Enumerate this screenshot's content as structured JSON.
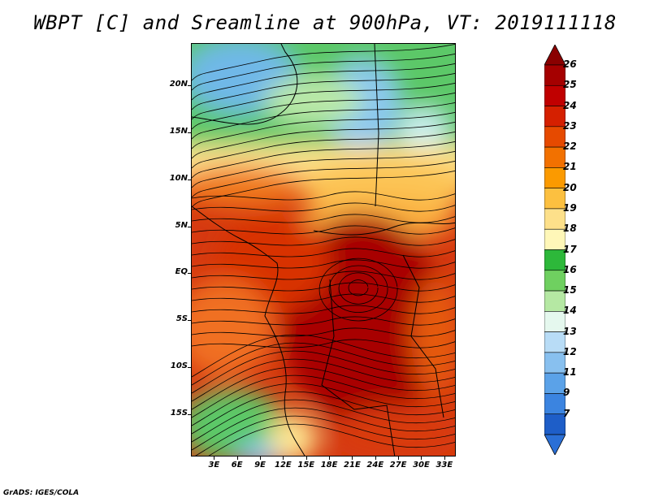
{
  "title": "WBPT [C] and Sreamline at 900hPa, VT: 2019111118",
  "footer": "GrADS: IGES/COLA",
  "axes": {
    "lat_labels": [
      "20N",
      "15N",
      "10N",
      "5N",
      "EQ",
      "5S",
      "10S",
      "15S"
    ],
    "lat_values": [
      20,
      15,
      10,
      5,
      0,
      -5,
      -10,
      -15
    ],
    "lon_labels": [
      "3E",
      "6E",
      "9E",
      "12E",
      "15E",
      "18E",
      "21E",
      "24E",
      "27E",
      "30E",
      "33E"
    ],
    "lon_values": [
      3,
      6,
      9,
      12,
      15,
      18,
      21,
      24,
      27,
      30,
      33
    ],
    "lon_range": [
      0,
      34.5
    ],
    "lat_range": [
      -19.5,
      24.5
    ]
  },
  "colorbar": {
    "labels": [
      "26",
      "25",
      "24",
      "23",
      "22",
      "21",
      "20",
      "19",
      "18",
      "17",
      "16",
      "15",
      "14",
      "13",
      "12",
      "11",
      "9",
      "7"
    ],
    "colors": [
      "#a50000",
      "#c00000",
      "#d52000",
      "#e64a00",
      "#f27100",
      "#fb9a00",
      "#fcc040",
      "#fde08a",
      "#fff7b8",
      "#2db83a",
      "#6fd060",
      "#b5e8a3",
      "#e5f8ee",
      "#b8dcf6",
      "#88c0ef",
      "#5ba2e8",
      "#3b84e0",
      "#1e5ec8"
    ],
    "top_color": "#8a0000",
    "bottom_color": "#2a6fd6"
  },
  "map_colors": {
    "sea_green": "#4fc46a",
    "land_dark": "#111111"
  }
}
